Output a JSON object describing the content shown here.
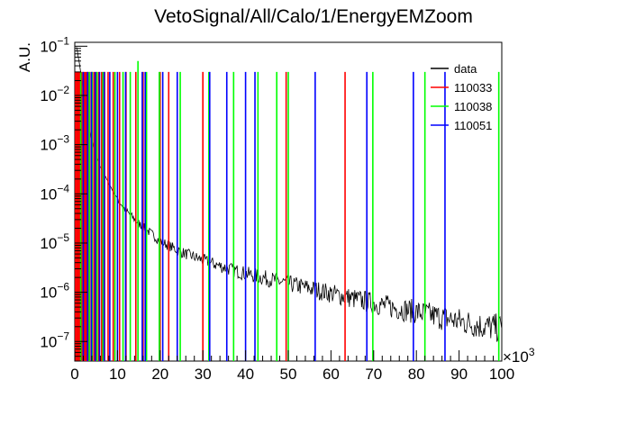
{
  "chart_data": {
    "type": "line",
    "title": "VetoSignal/All/Calo/1/EnergyEMZoom",
    "xlabel": "",
    "ylabel": "A.U.",
    "x_scale_label": "×10",
    "x_scale_exp": "3",
    "xlim": [
      0,
      100
    ],
    "ylim": [
      4e-08,
      0.12
    ],
    "y_scale": "log",
    "grid": false,
    "legend_position": "top-right",
    "x_ticks": [
      0,
      10,
      20,
      30,
      40,
      50,
      60,
      70,
      80,
      90,
      100
    ],
    "x_tick_labels": [
      "0",
      "10",
      "20",
      "30",
      "40",
      "50",
      "60",
      "70",
      "80",
      "90",
      "100"
    ],
    "y_ticks": [
      {
        "value": 1e-07,
        "base": "10",
        "exp": "−7"
      },
      {
        "value": 1e-06,
        "base": "10",
        "exp": "−6"
      },
      {
        "value": 1e-05,
        "base": "10",
        "exp": "−5"
      },
      {
        "value": 0.0001,
        "base": "10",
        "exp": "−4"
      },
      {
        "value": 0.001,
        "base": "10",
        "exp": "−3"
      },
      {
        "value": 0.01,
        "base": "10",
        "exp": "−2"
      },
      {
        "value": 0.1,
        "base": "10",
        "exp": "−1"
      }
    ],
    "series": [
      {
        "name": "data",
        "color": "#000000",
        "kind": "curve",
        "x": [
          0.4,
          1,
          2,
          3,
          4,
          5,
          6,
          8,
          10,
          12,
          15,
          20,
          25,
          30,
          35,
          40,
          45,
          50,
          55,
          60,
          65,
          70,
          75,
          80,
          85,
          90,
          95,
          100
        ],
        "y": [
          0.1,
          0.05,
          0.012,
          0.003,
          0.0012,
          0.0006,
          0.00035,
          0.00016,
          8e-05,
          4.5e-05,
          2.5e-05,
          1.1e-05,
          6.5e-06,
          4.5e-06,
          3.2e-06,
          2.4e-06,
          1.9e-06,
          1.5e-06,
          1.2e-06,
          9.5e-07,
          7.5e-07,
          6e-07,
          4.8e-07,
          4e-07,
          3.2e-07,
          2.6e-07,
          2.1e-07,
          1.8e-07
        ]
      },
      {
        "name": "110033",
        "color": "#ff0000",
        "kind": "spikes",
        "x": [
          0.2,
          0.5,
          0.8,
          1.0,
          1.3,
          1.6,
          1.9,
          2.2,
          2.5,
          2.8,
          3.1,
          3.5,
          4.0,
          4.5,
          5.0,
          5.6,
          6.3,
          7.0,
          7.8,
          9.0,
          10.5,
          12.0,
          14.3,
          16.0,
          20.0,
          22.0,
          30.0,
          49.5,
          63.3
        ],
        "y": [
          0.03,
          0.03,
          0.03,
          0.03,
          0.03,
          0.03,
          0.03,
          0.03,
          0.03,
          0.03,
          0.03,
          0.03,
          0.03,
          0.03,
          0.03,
          0.03,
          0.03,
          0.03,
          0.03,
          0.03,
          0.03,
          0.03,
          0.03,
          0.03,
          0.03,
          0.03,
          0.03,
          0.03,
          0.03
        ]
      },
      {
        "name": "110038",
        "color": "#00ff00",
        "kind": "spikes",
        "x": [
          1.4,
          3.4,
          4.1,
          5.2,
          6.6,
          9.4,
          11.3,
          13.0,
          14.8,
          16.8,
          19.8,
          24.7,
          31.4,
          37.2,
          42.9,
          47.3,
          50.0,
          69.8,
          82.0,
          99.3
        ],
        "y": [
          0.03,
          0.03,
          0.03,
          0.03,
          0.03,
          0.03,
          0.03,
          0.03,
          0.05,
          0.03,
          0.03,
          0.03,
          0.03,
          0.03,
          0.03,
          0.03,
          0.03,
          0.03,
          0.03,
          0.03
        ]
      },
      {
        "name": "110051",
        "color": "#0000ff",
        "kind": "spikes",
        "x": [
          2.0,
          3.0,
          3.9,
          4.8,
          5.8,
          6.9,
          8.2,
          10.0,
          11.9,
          15.8,
          16.5,
          20.6,
          24.0,
          31.6,
          35.6,
          40.0,
          42.2,
          56.3,
          68.4,
          79.3,
          86.7
        ],
        "y": [
          0.03,
          0.03,
          0.03,
          0.03,
          0.03,
          0.03,
          0.03,
          0.03,
          0.03,
          0.03,
          0.03,
          0.03,
          0.03,
          0.03,
          0.03,
          0.03,
          0.03,
          0.03,
          0.03,
          0.03,
          0.03
        ]
      }
    ]
  }
}
